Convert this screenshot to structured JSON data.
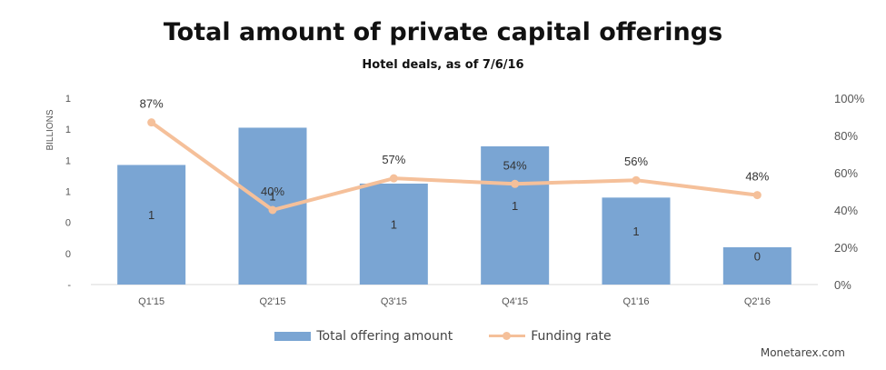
{
  "title": "Total amount of private capital offerings",
  "subtitle": "Hotel deals, as of 7/6/16",
  "watermark": "Monetarex.com",
  "legend": {
    "bar_label": "Total offering amount",
    "line_label": "Funding rate"
  },
  "colors": {
    "bar": "#7aa5d3",
    "line": "#f5c09a",
    "grid": "#d9d9d9",
    "axis_text": "#555555"
  },
  "chart_data": {
    "type": "bar",
    "categories": [
      "Q1'15",
      "Q2'15",
      "Q3'15",
      "Q4'15",
      "Q1'16",
      "Q2'16"
    ],
    "series": [
      {
        "name": "Total offering amount",
        "type": "bar",
        "axis": "left",
        "values": [
          0.77,
          1.01,
          0.65,
          0.89,
          0.56,
          0.24
        ],
        "labels": [
          "1",
          "1",
          "1",
          "1",
          "1",
          "0"
        ]
      },
      {
        "name": "Funding rate",
        "type": "line",
        "axis": "right",
        "values": [
          87,
          40,
          57,
          54,
          56,
          48
        ],
        "labels": [
          "87%",
          "40%",
          "57%",
          "54%",
          "56%",
          "48%"
        ]
      }
    ],
    "ylabel": "BILLIONS",
    "y_left_ticks": [
      "1",
      "1",
      "1",
      "1",
      "0",
      "0",
      "-"
    ],
    "y_left_range": [
      0,
      1.2
    ],
    "y_right_ticks": [
      "100%",
      "80%",
      "60%",
      "40%",
      "20%",
      "0%"
    ],
    "y_right_range": [
      0,
      100
    ],
    "grid": false,
    "legend_position": "bottom-center"
  }
}
